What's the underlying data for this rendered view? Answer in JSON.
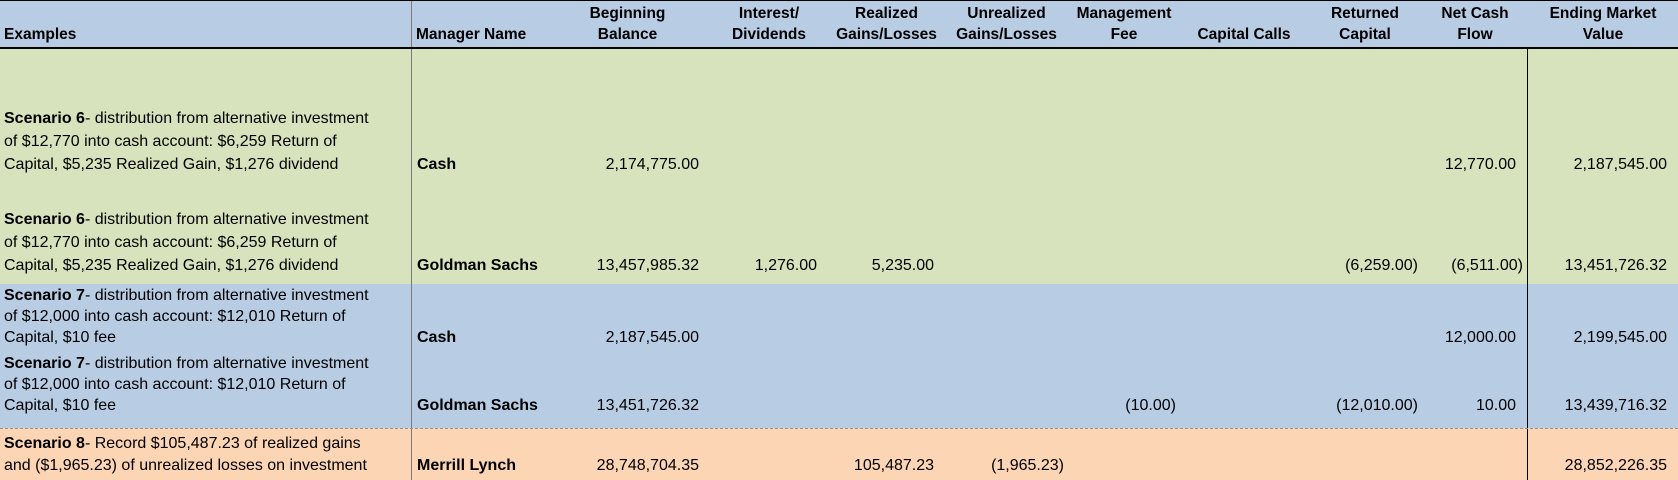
{
  "colors": {
    "header_bg": "#B8CCE4",
    "green_bg": "#D6E3BC",
    "blue_bg": "#B8CCE4",
    "orange_bg": "#FCD5B4"
  },
  "columns": [
    {
      "key": "examples",
      "align": "left",
      "label_lines": [
        "Examples"
      ]
    },
    {
      "key": "manager",
      "align": "left",
      "label_lines": [
        "Manager Name"
      ]
    },
    {
      "key": "beginning",
      "align": "right",
      "label_lines": [
        "Beginning",
        "Balance"
      ]
    },
    {
      "key": "interest",
      "align": "right",
      "label_lines": [
        "Interest/",
        "Dividends"
      ]
    },
    {
      "key": "realized",
      "align": "right",
      "label_lines": [
        "Realized",
        "Gains/Losses"
      ]
    },
    {
      "key": "unrealized",
      "align": "right",
      "label_lines": [
        "Unrealized",
        "Gains/Losses"
      ]
    },
    {
      "key": "mgmt_fee",
      "align": "right",
      "label_lines": [
        "Management",
        "Fee"
      ]
    },
    {
      "key": "capital_calls",
      "align": "right",
      "label_lines": [
        "Capital Calls"
      ]
    },
    {
      "key": "returned",
      "align": "right",
      "label_lines": [
        "Returned",
        "Capital"
      ]
    },
    {
      "key": "net_cash",
      "align": "right",
      "label_lines": [
        "Net Cash",
        "Flow"
      ]
    },
    {
      "key": "ending",
      "align": "right",
      "label_lines": [
        "Ending Market",
        "Value"
      ]
    }
  ],
  "rows": [
    {
      "section": "green",
      "scenario_bold": "Scenario 6",
      "scenario_lines": [
        "- distribution from alternative investment",
        "of $12,770 into cash account: $6,259 Return of",
        "Capital, $5,235 Realized Gain, $1,276 dividend"
      ],
      "manager": "Cash",
      "values": {
        "beginning": "2,174,775.00",
        "interest": "",
        "realized": "",
        "unrealized": "",
        "mgmt_fee": "",
        "capital_calls": "",
        "returned": "",
        "net_cash": "12,770.00",
        "ending": "2,187,545.00"
      }
    },
    {
      "section": "green",
      "scenario_bold": "Scenario 6",
      "scenario_lines": [
        "- distribution from alternative investment",
        "of $12,770 into cash account: $6,259 Return of",
        "Capital, $5,235 Realized Gain, $1,276 dividend"
      ],
      "manager": "Goldman Sachs",
      "values": {
        "beginning": "13,457,985.32",
        "interest": "1,276.00",
        "realized": "5,235.00",
        "unrealized": "",
        "mgmt_fee": "",
        "capital_calls": "",
        "returned": "(6,259.00)",
        "net_cash": "(6,511.00)",
        "ending": "13,451,726.32"
      }
    },
    {
      "section": "blue",
      "scenario_bold": "Scenario 7",
      "scenario_lines": [
        "- distribution from alternative investment",
        "of $12,000 into cash account: $12,010 Return of",
        "Capital, $10 fee"
      ],
      "manager": "Cash",
      "values": {
        "beginning": "2,187,545.00",
        "interest": "",
        "realized": "",
        "unrealized": "",
        "mgmt_fee": "",
        "capital_calls": "",
        "returned": "",
        "net_cash": "12,000.00",
        "ending": "2,199,545.00"
      }
    },
    {
      "section": "blue",
      "scenario_bold": "Scenario 7",
      "scenario_lines": [
        "- distribution from alternative investment",
        "of $12,000 into cash account: $12,010 Return of",
        "Capital, $10 fee"
      ],
      "manager": "Goldman Sachs",
      "values": {
        "beginning": "13,451,726.32",
        "interest": "",
        "realized": "",
        "unrealized": "",
        "mgmt_fee": "(10.00)",
        "capital_calls": "",
        "returned": "(12,010.00)",
        "net_cash": "10.00",
        "ending": "13,439,716.32"
      }
    },
    {
      "section": "orange",
      "scenario_bold": "Scenario 8",
      "scenario_lines": [
        "- Record $105,487.23 of realized gains",
        "and ($1,965.23) of unrealized losses on investment"
      ],
      "manager": "Merrill Lynch",
      "values": {
        "beginning": "28,748,704.35",
        "interest": "",
        "realized": "105,487.23",
        "unrealized": "(1,965.23)",
        "mgmt_fee": "",
        "capital_calls": "",
        "returned": "",
        "net_cash": "",
        "ending": "28,852,226.35"
      }
    }
  ]
}
